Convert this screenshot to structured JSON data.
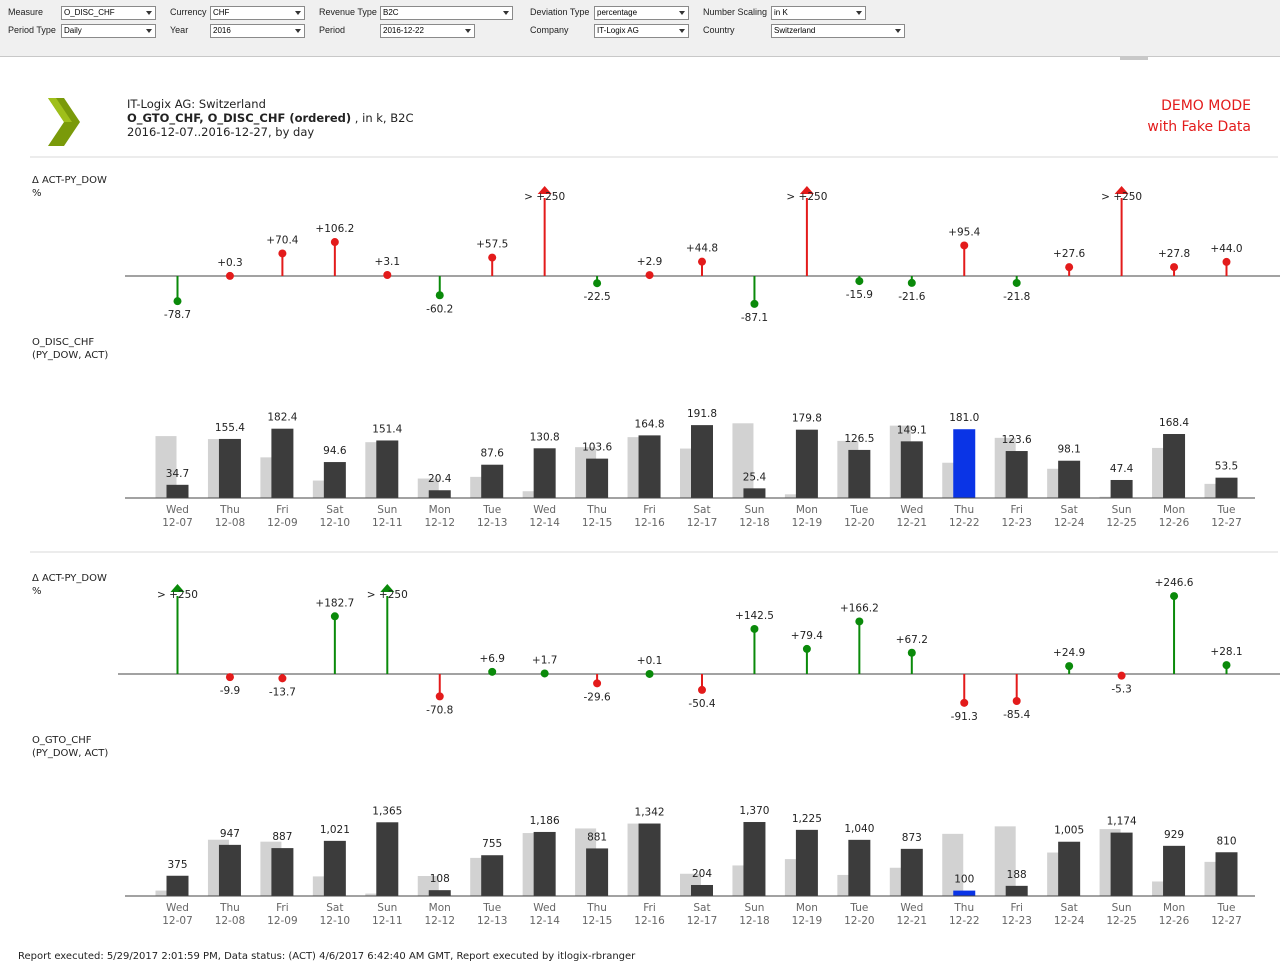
{
  "filters": [
    {
      "id": "measure",
      "label": "Measure",
      "value": "O_DISC_CHF"
    },
    {
      "id": "currency",
      "label": "Currency",
      "value": "CHF"
    },
    {
      "id": "revenue-type",
      "label": "Revenue Type",
      "value": "B2C"
    },
    {
      "id": "deviation-type",
      "label": "Deviation Type",
      "value": "percentage"
    },
    {
      "id": "number-scaling",
      "label": "Number Scaling",
      "value": "in K"
    },
    {
      "id": "period-type",
      "label": "Period Type",
      "value": "Daily"
    },
    {
      "id": "year",
      "label": "Year",
      "value": "2016"
    },
    {
      "id": "period",
      "label": "Period",
      "value": "2016-12-22"
    },
    {
      "id": "company",
      "label": "Company",
      "value": "IT-Logix AG"
    },
    {
      "id": "country",
      "label": "Country",
      "value": "Switzerland"
    }
  ],
  "header": {
    "company_line": "IT-Logix AG: Switzerland",
    "measures_bold": "O_GTO_CHF, O_DISC_CHF (ordered)",
    "measures_rest": " , in k, B2C",
    "date_range": "2016-12-07..2016-12-27, by day",
    "demo_line1": "DEMO MODE",
    "demo_line2": "with Fake Data"
  },
  "colors": {
    "positive_disc": "#e31b1b",
    "negative_disc": "#0a8a0a",
    "positive_gto": "#0a8a0a",
    "negative_gto": "#e31b1b",
    "act_bar": "#3c3c3c",
    "pv_bar": "#d2d2d2",
    "highlight": "#0a34e6"
  },
  "chart_data": [
    {
      "id": "disc-deviation",
      "type": "lollipop",
      "title": "Δ ACT-PY_DOW",
      "unit": "%",
      "cap_label": "> +250",
      "values": [
        -78.7,
        0.3,
        70.4,
        106.2,
        3.1,
        -60.2,
        57.5,
        250,
        -22.5,
        2.9,
        44.8,
        -87.1,
        250,
        -15.9,
        -21.6,
        95.4,
        -21.8,
        27.6,
        250,
        27.8,
        44.0
      ],
      "labels": [
        "-78.7",
        "+0.3",
        "+70.4",
        "+106.2",
        "+3.1",
        "-60.2",
        "+57.5",
        "> +250",
        "-22.5",
        "+2.9",
        "+44.8",
        "-87.1",
        "> +250",
        "-15.9",
        "-21.6",
        "+95.4",
        "-21.8",
        "+27.6",
        "> +250",
        "+27.8",
        "+44.0"
      ],
      "capped": [
        false,
        false,
        false,
        false,
        false,
        false,
        false,
        true,
        false,
        false,
        false,
        false,
        true,
        false,
        false,
        false,
        false,
        false,
        true,
        false,
        false
      ]
    },
    {
      "id": "disc-bars",
      "type": "bar",
      "title": "O_DISC_CHF",
      "subtitle": "(PY_DOW, ACT)",
      "categories_dow": [
        "Wed",
        "Thu",
        "Fri",
        "Sat",
        "Sun",
        "Mon",
        "Tue",
        "Wed",
        "Thu",
        "Fri",
        "Sat",
        "Sun",
        "Mon",
        "Tue",
        "Wed",
        "Thu",
        "Fri",
        "Sat",
        "Sun",
        "Mon",
        "Tue"
      ],
      "categories_date": [
        "12-07",
        "12-08",
        "12-09",
        "12-10",
        "12-11",
        "12-12",
        "12-13",
        "12-14",
        "12-15",
        "12-16",
        "12-17",
        "12-18",
        "12-19",
        "12-20",
        "12-21",
        "12-22",
        "12-23",
        "12-24",
        "12-25",
        "12-26",
        "12-27"
      ],
      "series": [
        {
          "name": "PY_DOW",
          "values": [
            162.9,
            155.0,
            107.0,
            45.9,
            146.9,
            51.2,
            55.6,
            17.8,
            133.8,
            160.2,
            130.1,
            196.6,
            9.7,
            150.3,
            190.4,
            92.8,
            158.3,
            76.9,
            3.4,
            131.8,
            37.2
          ]
        },
        {
          "name": "ACT",
          "values": [
            34.7,
            155.4,
            182.4,
            94.6,
            151.4,
            20.4,
            87.6,
            130.8,
            103.6,
            164.8,
            191.8,
            25.4,
            179.8,
            126.5,
            149.1,
            181.0,
            123.6,
            98.1,
            47.4,
            168.4,
            53.5
          ]
        }
      ],
      "value_labels": [
        "34.7",
        "155.4",
        "182.4",
        "94.6",
        "151.4",
        "20.4",
        "87.6",
        "130.8",
        "103.6",
        "164.8",
        "191.8",
        "25.4",
        "179.8",
        "126.5",
        "149.1",
        "181.0",
        "123.6",
        "98.1",
        "47.4",
        "168.4",
        "53.5"
      ],
      "highlight_index": 15
    },
    {
      "id": "gto-deviation",
      "type": "lollipop",
      "title": "Δ ACT-PY_DOW",
      "unit": "%",
      "cap_label": "> +250",
      "values": [
        250,
        -9.9,
        -13.7,
        182.7,
        250,
        -70.8,
        6.9,
        1.7,
        -29.6,
        0.1,
        -50.4,
        142.5,
        79.4,
        166.2,
        67.2,
        -91.3,
        -85.4,
        24.9,
        -5.3,
        246.6,
        28.1
      ],
      "labels": [
        "> +250",
        "-9.9",
        "-13.7",
        "+182.7",
        "> +250",
        "-70.8",
        "+6.9",
        "+1.7",
        "-29.6",
        "+0.1",
        "-50.4",
        "+142.5",
        "+79.4",
        "+166.2",
        "+67.2",
        "-91.3",
        "-85.4",
        "+24.9",
        "-5.3",
        "+246.6",
        "+28.1"
      ],
      "capped": [
        true,
        false,
        false,
        false,
        true,
        false,
        false,
        false,
        false,
        false,
        false,
        false,
        false,
        false,
        false,
        false,
        false,
        false,
        false,
        false,
        false
      ]
    },
    {
      "id": "gto-bars",
      "type": "bar",
      "title": "O_GTO_CHF",
      "subtitle": "(PY_DOW, ACT)",
      "categories_dow": [
        "Wed",
        "Thu",
        "Fri",
        "Sat",
        "Sun",
        "Mon",
        "Tue",
        "Wed",
        "Thu",
        "Fri",
        "Sat",
        "Sun",
        "Mon",
        "Tue",
        "Wed",
        "Thu",
        "Fri",
        "Sat",
        "Sun",
        "Mon",
        "Tue"
      ],
      "categories_date": [
        "12-07",
        "12-08",
        "12-09",
        "12-10",
        "12-11",
        "12-12",
        "12-13",
        "12-14",
        "12-15",
        "12-16",
        "12-17",
        "12-18",
        "12-19",
        "12-20",
        "12-21",
        "12-22",
        "12-23",
        "12-24",
        "12-25",
        "12-26",
        "12-27"
      ],
      "series": [
        {
          "name": "PY_DOW",
          "values": [
            100,
            1042,
            1006,
            363,
            45,
            370,
            706,
            1166,
            1251,
            1341,
            412,
            566,
            683,
            390,
            523,
            1151,
            1290,
            805,
            1239,
            269,
            632
          ]
        },
        {
          "name": "ACT",
          "values": [
            375,
            947,
            887,
            1021,
            1365,
            108,
            755,
            1186,
            881,
            1342,
            204,
            1370,
            1225,
            1040,
            873,
            100,
            188,
            1005,
            1174,
            929,
            810
          ]
        }
      ],
      "value_labels": [
        "375",
        "947",
        "887",
        "1,021",
        "1,365",
        "108",
        "755",
        "1,186",
        "881",
        "1,342",
        "204",
        "1,370",
        "1,225",
        "1,040",
        "873",
        "100",
        "188",
        "1,005",
        "1,174",
        "929",
        "810"
      ],
      "highlight_index": 15
    }
  ],
  "footer": "Report executed: 5/29/2017 2:01:59 PM, Data status: (ACT) 4/6/2017 6:42:40 AM GMT, Report executed by itlogix-rbranger"
}
